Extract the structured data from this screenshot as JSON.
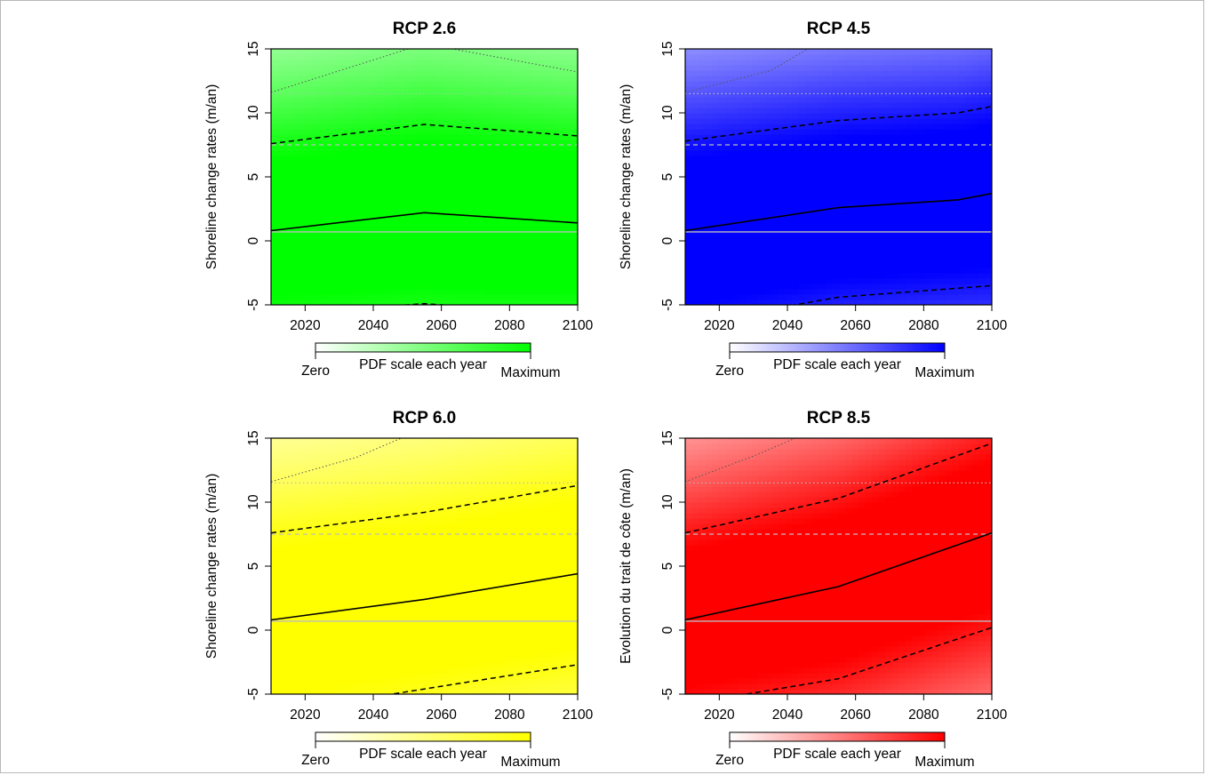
{
  "figure": {
    "colorbar_title": "PDF scale each year",
    "colorbar_min_label": "Zero",
    "colorbar_max_label": "Maximum"
  },
  "chart_data": [
    {
      "type": "heatmap",
      "title": "RCP 2.6",
      "ylabel": "Shoreline change rates (m/an)",
      "xlabel": "",
      "xlim": [
        2010,
        2100
      ],
      "ylim": [
        -5,
        15
      ],
      "xticks": [
        "2020",
        "2040",
        "2060",
        "2080",
        "2100"
      ],
      "yticks": [
        "-5",
        "0",
        "5",
        "10",
        "15"
      ],
      "colormap": {
        "low": "#ffffff",
        "high": "#00ff00"
      },
      "reference_lines": {
        "solid_grey": 0.7,
        "dashed_grey": 7.5,
        "dotted_grey": 11.5
      },
      "series": [
        {
          "style": "solid",
          "x": [
            2010,
            2055,
            2100
          ],
          "y": [
            0.8,
            2.2,
            1.4
          ]
        },
        {
          "style": "dashed",
          "x": [
            2010,
            2055,
            2100
          ],
          "y": [
            7.6,
            9.1,
            8.2
          ]
        },
        {
          "style": "dashed",
          "x": [
            2010,
            2045,
            2055,
            2065
          ],
          "y": [
            -5.6,
            -5.1,
            -4.9,
            -5.1
          ]
        },
        {
          "style": "dotted",
          "x": [
            2010,
            2055,
            2100
          ],
          "y": [
            11.6,
            15.4,
            13.2
          ]
        }
      ]
    },
    {
      "type": "heatmap",
      "title": "RCP 4.5",
      "ylabel": "Shoreline change rates (m/an)",
      "xlabel": "",
      "xlim": [
        2010,
        2100
      ],
      "ylim": [
        -5,
        15
      ],
      "xticks": [
        "2020",
        "2040",
        "2060",
        "2080",
        "2100"
      ],
      "yticks": [
        "-5",
        "0",
        "5",
        "10",
        "15"
      ],
      "colormap": {
        "low": "#ffffff",
        "high": "#0000ff"
      },
      "reference_lines": {
        "solid_grey": 0.7,
        "dashed_grey": 7.5,
        "dotted_grey": 11.5
      },
      "series": [
        {
          "style": "solid",
          "x": [
            2010,
            2055,
            2090,
            2100
          ],
          "y": [
            0.8,
            2.6,
            3.2,
            3.7
          ]
        },
        {
          "style": "dashed",
          "x": [
            2010,
            2055,
            2090,
            2100
          ],
          "y": [
            7.8,
            9.4,
            10.0,
            10.5
          ]
        },
        {
          "style": "dashed",
          "x": [
            2010,
            2055,
            2100
          ],
          "y": [
            -6.5,
            -4.4,
            -3.5
          ]
        },
        {
          "style": "dotted",
          "x": [
            2010,
            2035,
            2050
          ],
          "y": [
            11.6,
            13.3,
            15.6
          ]
        }
      ]
    },
    {
      "type": "heatmap",
      "title": "RCP 6.0",
      "ylabel": "Shoreline change rates (m/an)",
      "xlabel": "",
      "xlim": [
        2010,
        2100
      ],
      "ylim": [
        -5,
        15
      ],
      "xticks": [
        "2020",
        "2040",
        "2060",
        "2080",
        "2100"
      ],
      "yticks": [
        "-5",
        "0",
        "5",
        "10",
        "15"
      ],
      "colormap": {
        "low": "#ffffff",
        "high": "#ffff00"
      },
      "reference_lines": {
        "solid_grey": 0.7,
        "dashed_grey": 7.5,
        "dotted_grey": 11.5
      },
      "series": [
        {
          "style": "solid",
          "x": [
            2010,
            2055,
            2100
          ],
          "y": [
            0.8,
            2.4,
            4.4
          ]
        },
        {
          "style": "dashed",
          "x": [
            2010,
            2055,
            2100
          ],
          "y": [
            7.6,
            9.2,
            11.3
          ]
        },
        {
          "style": "dashed",
          "x": [
            2010,
            2055,
            2100
          ],
          "y": [
            -6.5,
            -4.6,
            -2.7
          ]
        },
        {
          "style": "dotted",
          "x": [
            2010,
            2035,
            2050
          ],
          "y": [
            11.6,
            13.5,
            15.2
          ]
        }
      ]
    },
    {
      "type": "heatmap",
      "title": "RCP 8.5",
      "ylabel": "Evolution du trait de côte (m/an)",
      "xlabel": "",
      "xlim": [
        2010,
        2100
      ],
      "ylim": [
        -5,
        15
      ],
      "xticks": [
        "2020",
        "2040",
        "2060",
        "2080",
        "2100"
      ],
      "yticks": [
        "-5",
        "0",
        "5",
        "10",
        "15"
      ],
      "colormap": {
        "low": "#ffffff",
        "high": "#ff0000"
      },
      "reference_lines": {
        "solid_grey": 0.7,
        "dashed_grey": 7.5,
        "dotted_grey": 11.5
      },
      "series": [
        {
          "style": "solid",
          "x": [
            2010,
            2055,
            2100
          ],
          "y": [
            0.8,
            3.4,
            7.6
          ]
        },
        {
          "style": "dashed",
          "x": [
            2010,
            2055,
            2100
          ],
          "y": [
            7.6,
            10.3,
            14.6
          ]
        },
        {
          "style": "dashed",
          "x": [
            2010,
            2055,
            2100
          ],
          "y": [
            -5.8,
            -3.8,
            0.2
          ]
        },
        {
          "style": "dotted",
          "x": [
            2010,
            2030,
            2045
          ],
          "y": [
            11.6,
            13.6,
            15.3
          ]
        }
      ]
    }
  ]
}
